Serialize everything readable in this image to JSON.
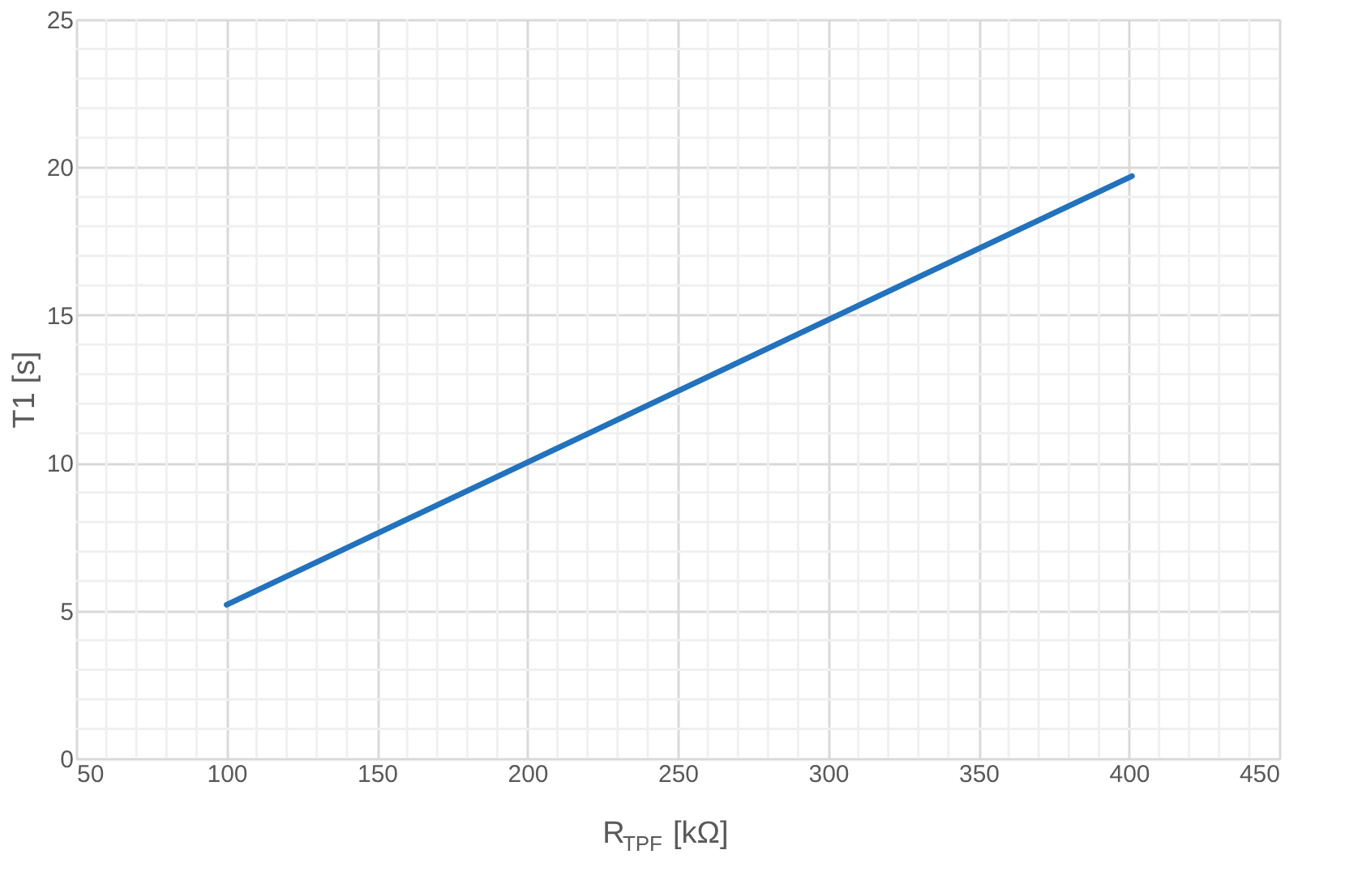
{
  "chart_data": {
    "type": "line",
    "xlabel": "R$_{TPF}$ [kΩ]",
    "ylabel": "T1 [s]",
    "series": [
      {
        "color": "#2272bd",
        "x": [
          100,
          401
        ],
        "values": [
          5.2,
          19.7
        ]
      }
    ],
    "xlim": [
      50,
      450
    ],
    "xticks": [
      50,
      100,
      150,
      200,
      250,
      300,
      350,
      400,
      450
    ],
    "ylim": [
      0,
      25
    ],
    "yticks": [
      0,
      5,
      10,
      15,
      20,
      25
    ],
    "grid": true,
    "legend": false,
    "marker": "none",
    "line_style": "solid"
  }
}
